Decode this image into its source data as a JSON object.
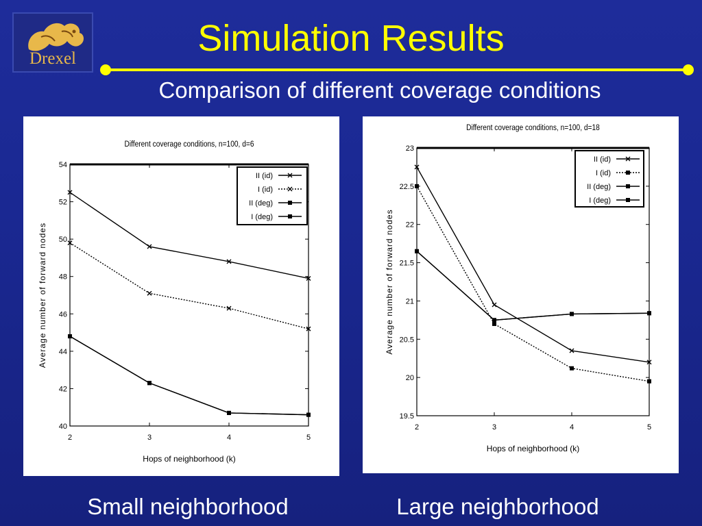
{
  "slide": {
    "title": "Simulation Results",
    "subtitle": "Comparison of different coverage conditions",
    "logo_text": "Drexel",
    "captions": [
      "Small neighborhood",
      "Large neighborhood"
    ],
    "colors": {
      "background": "#1a2892",
      "title": "#ffff00",
      "rule": "#ffff00",
      "text": "#ffffff"
    }
  },
  "chart_data": [
    {
      "type": "line",
      "title": "Different coverage conditions, n=100, d=6",
      "xlabel": "Hops of neighborhood (k)",
      "ylabel": "Average number of forward nodes",
      "xlim": [
        2,
        5
      ],
      "ylim": [
        40,
        54
      ],
      "x_ticks": [
        2,
        3,
        4,
        5
      ],
      "y_ticks": [
        40,
        42,
        44,
        46,
        48,
        50,
        52,
        54
      ],
      "legend_position": "top-right",
      "grid": false,
      "x": [
        2,
        3,
        4,
        5
      ],
      "series": [
        {
          "name": "II (id)",
          "values": [
            52.5,
            49.6,
            48.8,
            47.9
          ],
          "marker": "x",
          "dash": "solid"
        },
        {
          "name": "I (id)",
          "values": [
            49.8,
            47.1,
            46.3,
            45.2
          ],
          "marker": "x",
          "dash": "dotted"
        },
        {
          "name": "II (deg)",
          "values": [
            44.8,
            42.3,
            40.7,
            40.6
          ],
          "marker": "square",
          "dash": "solid"
        },
        {
          "name": "I (deg)",
          "values": [
            44.8,
            42.3,
            40.7,
            40.6
          ],
          "marker": "square",
          "dash": "solid"
        }
      ]
    },
    {
      "type": "line",
      "title": "Different coverage conditions, n=100, d=18",
      "xlabel": "Hops of neighborhood (k)",
      "ylabel": "Average number of forward nodes",
      "xlim": [
        2,
        5
      ],
      "ylim": [
        19.5,
        23
      ],
      "x_ticks": [
        2,
        3,
        4,
        5
      ],
      "y_ticks": [
        19.5,
        20,
        20.5,
        21,
        21.5,
        22,
        22.5,
        23
      ],
      "legend_position": "top-right",
      "grid": false,
      "x": [
        2,
        3,
        4,
        5
      ],
      "series": [
        {
          "name": "II (id)",
          "values": [
            22.75,
            20.95,
            20.35,
            20.2
          ],
          "marker": "x",
          "dash": "solid"
        },
        {
          "name": "I (id)",
          "values": [
            22.5,
            20.7,
            20.12,
            19.95
          ],
          "marker": "square",
          "dash": "dotted"
        },
        {
          "name": "II (deg)",
          "values": [
            21.65,
            20.75,
            20.83,
            20.84
          ],
          "marker": "square",
          "dash": "solid"
        },
        {
          "name": "I (deg)",
          "values": [
            21.65,
            20.75,
            20.83,
            20.84
          ],
          "marker": "square",
          "dash": "solid"
        }
      ]
    }
  ]
}
